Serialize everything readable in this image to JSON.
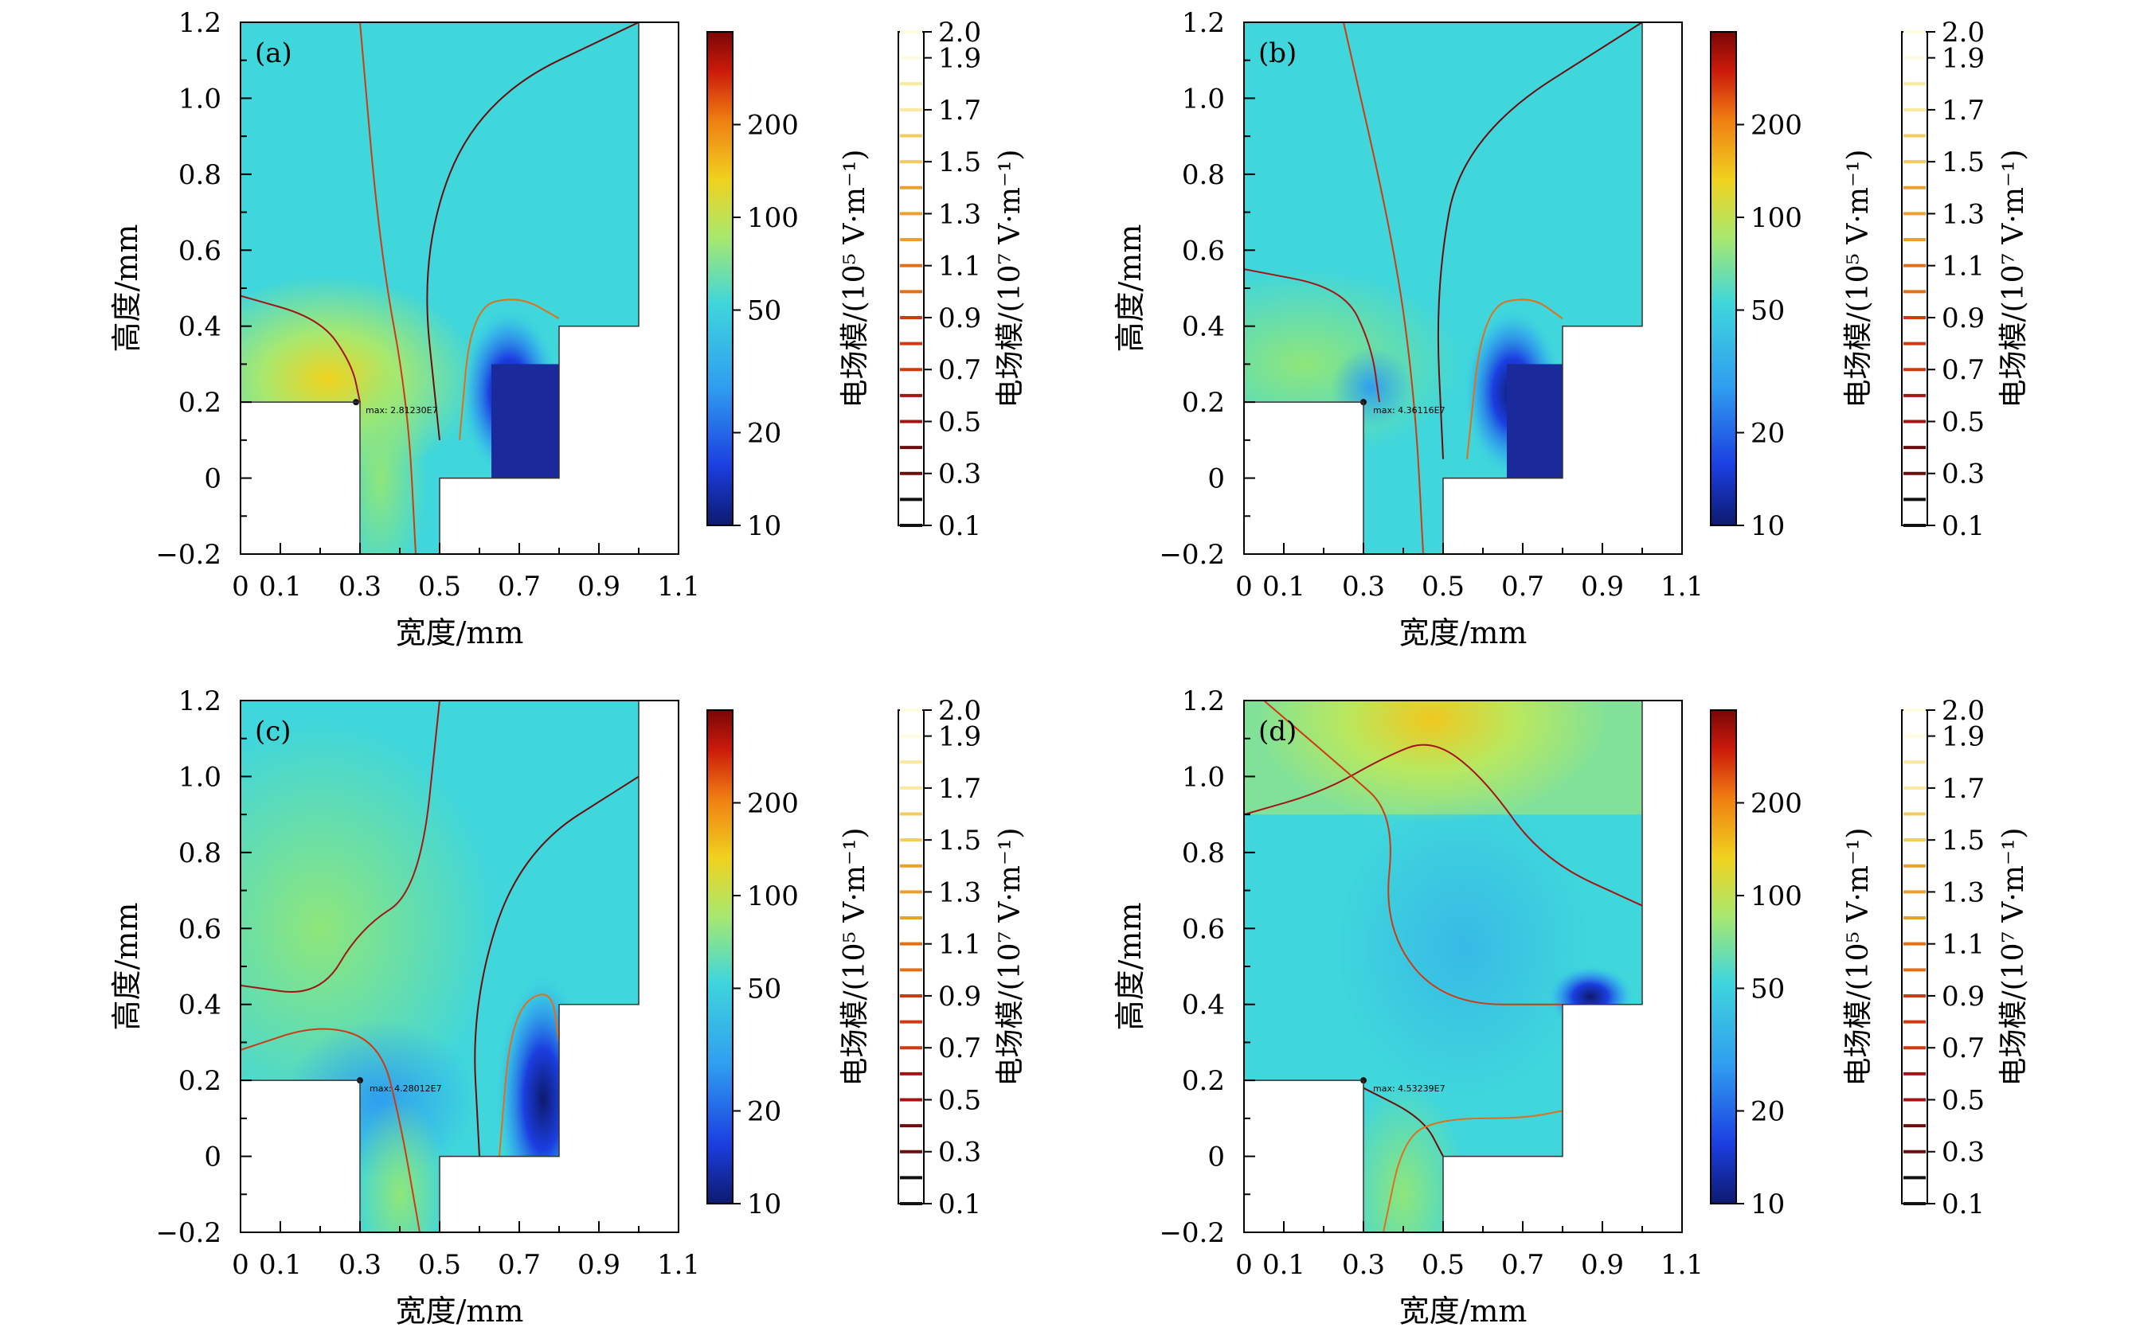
{
  "chart_data": [
    {
      "type": "heatmap",
      "panel": "(a)",
      "xlabel": "宽度/mm",
      "ylabel": "高度/mm",
      "xlim": [
        0,
        1.1
      ],
      "ylim": [
        -0.2,
        1.2
      ],
      "x_ticks": [
        "0",
        "0.1",
        "0.3",
        "0.5",
        "0.7",
        "0.9",
        "1.1"
      ],
      "y_ticks": [
        "−0.2",
        "0",
        "0.2",
        "0.4",
        "0.6",
        "0.8",
        "1.0",
        "1.2"
      ],
      "annotation": "max: 2.81230E7",
      "max_point": [
        0.29,
        0.2
      ],
      "cmap_title": "电场模/(10⁵ V·m⁻¹)",
      "cmap_ticks": [
        "10",
        "20",
        "50",
        "100",
        "200"
      ],
      "contour_title": "电场模/(10⁷ V·m⁻¹)",
      "contour_ticks": [
        "0.1",
        "0.3",
        "0.5",
        "0.7",
        "0.9",
        "1.1",
        "1.3",
        "1.5",
        "1.7",
        "1.9",
        "2.0"
      ],
      "channel": [
        [
          0.3,
          0.42
        ],
        [
          0.49,
          0.5
        ]
      ]
    },
    {
      "type": "heatmap",
      "panel": "(b)",
      "xlabel": "宽度/mm",
      "ylabel": "高度/mm",
      "xlim": [
        0,
        1.1
      ],
      "ylim": [
        -0.2,
        1.2
      ],
      "x_ticks": [
        "0",
        "0.1",
        "0.3",
        "0.5",
        "0.7",
        "0.9",
        "1.1"
      ],
      "y_ticks": [
        "−0.2",
        "0",
        "0.2",
        "0.4",
        "0.6",
        "0.8",
        "1.0",
        "1.2"
      ],
      "annotation": "max: 4.36116E7",
      "max_point": [
        0.3,
        0.2
      ],
      "cmap_title": "电场模/(10⁵ V·m⁻¹)",
      "cmap_ticks": [
        "10",
        "20",
        "50",
        "100",
        "200"
      ],
      "contour_title": "电场模/(10⁷ V·m⁻¹)",
      "contour_ticks": [
        "0.1",
        "0.3",
        "0.5",
        "0.7",
        "0.9",
        "1.1",
        "1.3",
        "1.5",
        "1.7",
        "1.9",
        "2.0"
      ],
      "channel": [
        [
          0.3,
          0.5
        ]
      ]
    },
    {
      "type": "heatmap",
      "panel": "(c)",
      "xlabel": "宽度/mm",
      "ylabel": "高度/mm",
      "xlim": [
        0,
        1.1
      ],
      "ylim": [
        -0.2,
        1.2
      ],
      "x_ticks": [
        "0",
        "0.1",
        "0.3",
        "0.5",
        "0.7",
        "0.9",
        "1.1"
      ],
      "y_ticks": [
        "−0.2",
        "0",
        "0.2",
        "0.4",
        "0.6",
        "0.8",
        "1.0",
        "1.2"
      ],
      "annotation": "max: 4.28012E7",
      "max_point": [
        0.3,
        0.2
      ],
      "cmap_title": "电场模/(10⁵ V·m⁻¹)",
      "cmap_ticks": [
        "10",
        "20",
        "50",
        "100",
        "200"
      ],
      "contour_title": "电场模/(10⁷ V·m⁻¹)",
      "contour_ticks": [
        "0.1",
        "0.3",
        "0.5",
        "0.7",
        "0.9",
        "1.1",
        "1.3",
        "1.5",
        "1.7",
        "1.9",
        "2.0"
      ],
      "channel": [
        [
          0.3,
          0.5
        ]
      ]
    },
    {
      "type": "heatmap",
      "panel": "(d)",
      "xlabel": "宽度/mm",
      "ylabel": "高度/mm",
      "xlim": [
        0,
        1.1
      ],
      "ylim": [
        -0.2,
        1.2
      ],
      "x_ticks": [
        "0",
        "0.1",
        "0.3",
        "0.5",
        "0.7",
        "0.9",
        "1.1"
      ],
      "y_ticks": [
        "−0.2",
        "0",
        "0.2",
        "0.4",
        "0.6",
        "0.8",
        "1.0",
        "1.2"
      ],
      "annotation": "max: 4.53239E7",
      "max_point": [
        0.3,
        0.2
      ],
      "cmap_title": "电场模/(10⁵ V·m⁻¹)",
      "cmap_ticks": [
        "10",
        "20",
        "50",
        "100",
        "200"
      ],
      "contour_title": "电场模/(10⁷ V·m⁻¹)",
      "contour_ticks": [
        "0.1",
        "0.3",
        "0.5",
        "0.7",
        "0.9",
        "1.1",
        "1.3",
        "1.5",
        "1.7",
        "1.9",
        "2.0"
      ],
      "channel": [
        [
          0.3,
          0.5
        ]
      ]
    }
  ],
  "colors": {
    "field_base": "#3fd6dc",
    "jet_stops": [
      "#0d1a6e",
      "#1b3ee0",
      "#2f9ef0",
      "#3fd6dc",
      "#a6e870",
      "#f0d21f",
      "#f07f12",
      "#cc1a0a",
      "#7a0606"
    ],
    "contour_stops": [
      "#111111",
      "#6b0d0d",
      "#a31515",
      "#cf3a10",
      "#e0701a",
      "#eaa030",
      "#f2cc60",
      "#f8e8a0",
      "#fffbe0"
    ]
  }
}
